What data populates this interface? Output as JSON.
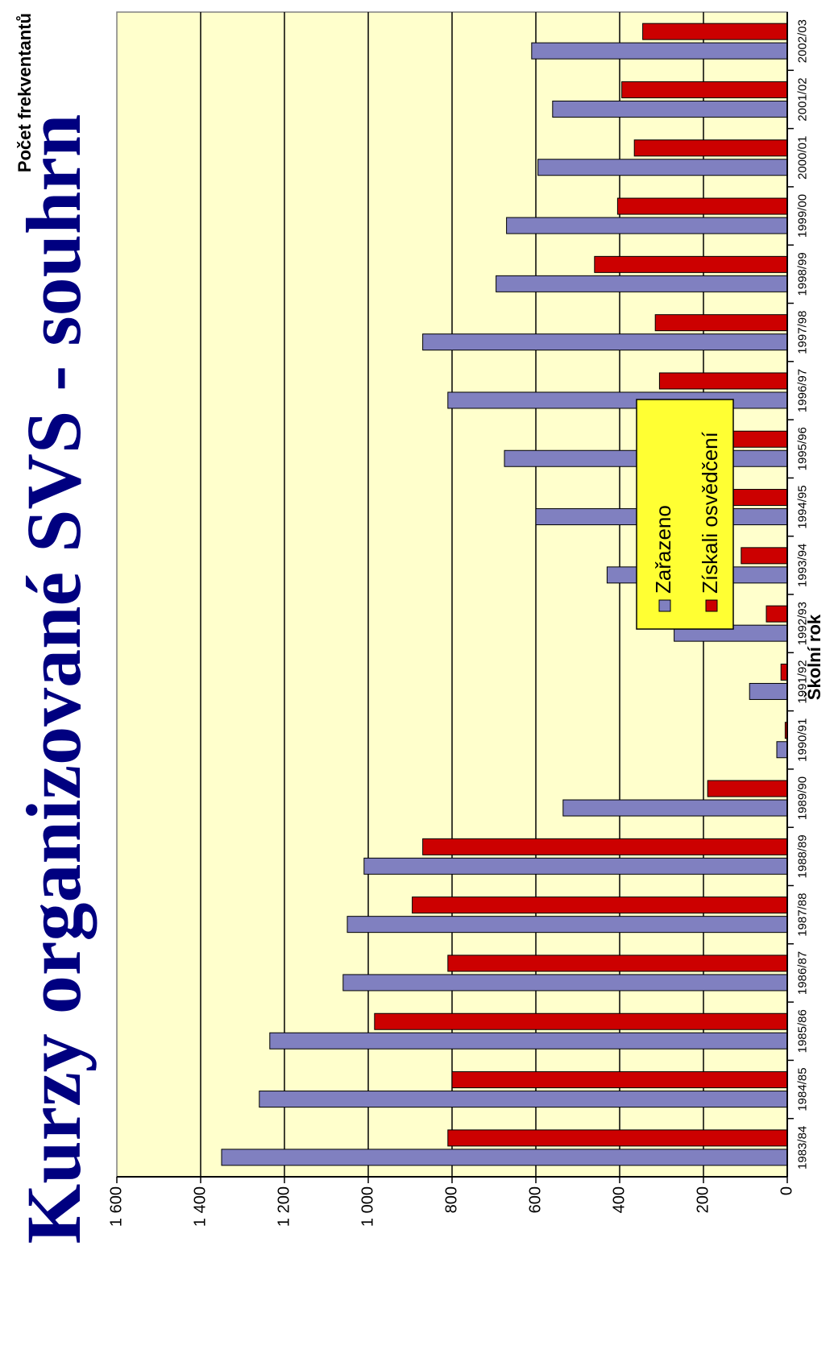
{
  "chart_data": {
    "type": "bar",
    "title": "Kurzy organizované SVS - souhrn",
    "ylabel": "Počet frekventantů",
    "xlabel": "Školní rok",
    "ylim": [
      0,
      1600
    ],
    "yticks": [
      0,
      200,
      400,
      600,
      800,
      1000,
      1200,
      1400,
      1600
    ],
    "ytick_labels": [
      "0",
      "200",
      "400",
      "600",
      "800",
      "1 000",
      "1 200",
      "1 400",
      "1 600"
    ],
    "grid": true,
    "legend_position": "center-left",
    "categories": [
      "1983/84",
      "1984/85",
      "1985/86",
      "1986/87",
      "1987/88",
      "1988/89",
      "1989/90",
      "1990/91",
      "1991/92",
      "1992/93",
      "1993/94",
      "1994/95",
      "1995/96",
      "1996/97",
      "1997/98",
      "1998/99",
      "1999/00",
      "2000/01",
      "2001/02",
      "2002/03"
    ],
    "series": [
      {
        "name": "Zařazeno",
        "color": "#8080C0",
        "values": [
          1350,
          1260,
          1235,
          1060,
          1050,
          1010,
          535,
          25,
          90,
          270,
          430,
          600,
          675,
          810,
          870,
          695,
          670,
          595,
          560,
          610
        ]
      },
      {
        "name": "Získali osvědčení",
        "color": "#CC0000",
        "values": [
          810,
          800,
          985,
          810,
          895,
          870,
          190,
          5,
          15,
          50,
          110,
          160,
          215,
          305,
          315,
          460,
          405,
          365,
          395,
          345
        ]
      }
    ],
    "plot_bg": "#FFFFCC",
    "legend_bg": "#FFFF33"
  }
}
